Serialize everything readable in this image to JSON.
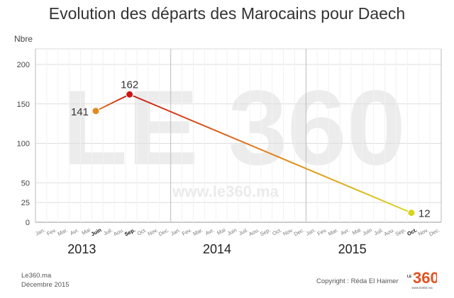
{
  "title": "Evolution des départs des Marocains pour Daech",
  "watermark": {
    "logo_text": "LE 360",
    "url": "www.le360.ma"
  },
  "footer": {
    "source": "Le360.ma",
    "date": "Décembre 2015",
    "copyright": "Copyright : Réda El Haimer",
    "logo_big": "360",
    "logo_le": "LE",
    "logo_url": "www.le360.ma"
  },
  "colors": {
    "start": "#e08a1e",
    "peak": "#cc1414",
    "end": "#d8d41e",
    "grid": "#dddddd"
  },
  "chart_data": {
    "type": "line",
    "title": "Evolution des départs des Marocains pour Daech",
    "ylabel": "Nbre",
    "ylim": [
      0,
      200
    ],
    "yticks": [
      0,
      25,
      50,
      100,
      150,
      200
    ],
    "years": [
      "2013",
      "2014",
      "2015"
    ],
    "month_labels": [
      "Jan.",
      "Fev.",
      "Mar.",
      "Avr.",
      "Mai",
      "Juin",
      "Juil.",
      "Aou.",
      "Sep.",
      "Oct.",
      "Nov.",
      "Dec."
    ],
    "bold_ticks": [
      "2013-6",
      "2013-9",
      "2015-10"
    ],
    "points": [
      {
        "x": "2013-06",
        "y": 141
      },
      {
        "x": "2013-09",
        "y": 162
      },
      {
        "x": "2015-10",
        "y": 12
      }
    ],
    "data_labels": [
      "141",
      "162",
      "12"
    ],
    "grid": true
  }
}
